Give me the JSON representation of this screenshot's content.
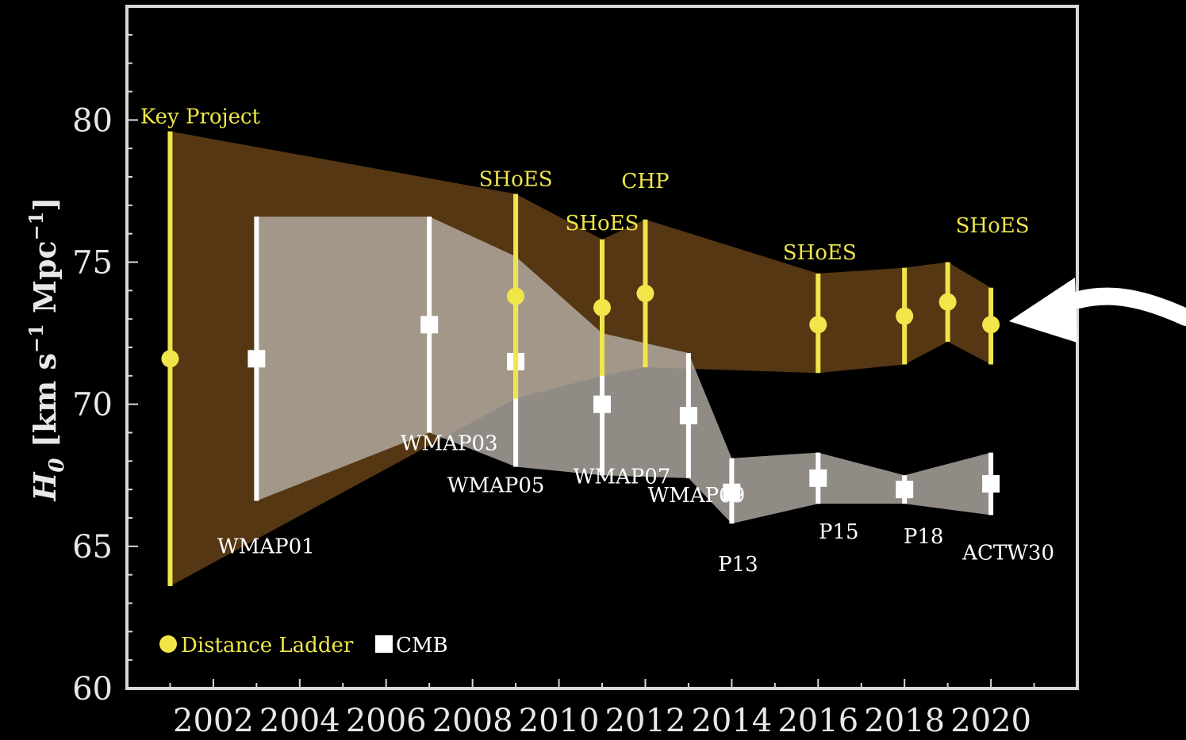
{
  "chart_data": {
    "type": "scatter",
    "title": "",
    "xlabel": "",
    "ylabel": "H0 [km s^-1 Mpc^-1]",
    "xlim": [
      2000,
      2022
    ],
    "ylim": [
      60,
      84
    ],
    "xticks": [
      2002,
      2004,
      2006,
      2008,
      2010,
      2012,
      2014,
      2016,
      2018,
      2020
    ],
    "yticks": [
      60,
      65,
      70,
      75,
      80
    ],
    "legend": {
      "placement": "bottom-left"
    },
    "series": [
      {
        "name": "Distance Ladder",
        "color": "#f0e64a",
        "band_color": "#5a3a14",
        "points": [
          {
            "x": 2001,
            "y": 71.6,
            "lo": 63.6,
            "hi": 79.6,
            "label": "Key Project"
          },
          {
            "x": 2009,
            "y": 73.8,
            "lo": 70.2,
            "hi": 77.4,
            "label": "SHoES"
          },
          {
            "x": 2011,
            "y": 73.4,
            "lo": 71.0,
            "hi": 75.8,
            "label": "SHoES"
          },
          {
            "x": 2012,
            "y": 73.9,
            "lo": 71.3,
            "hi": 76.5,
            "label": "CHP"
          },
          {
            "x": 2016,
            "y": 72.8,
            "lo": 71.1,
            "hi": 74.6,
            "label": "SHoES"
          },
          {
            "x": 2018,
            "y": 73.1,
            "lo": 71.4,
            "hi": 74.8,
            "label": ""
          },
          {
            "x": 2019,
            "y": 73.6,
            "lo": 72.2,
            "hi": 75.0,
            "label": ""
          },
          {
            "x": 2020,
            "y": 72.8,
            "lo": 71.4,
            "hi": 74.1,
            "label": "SHoES"
          }
        ]
      },
      {
        "name": "CMB",
        "color": "#ffffff",
        "band_color": "#b8b2aa",
        "points": [
          {
            "x": 2003,
            "y": 71.6,
            "lo": 66.6,
            "hi": 76.6,
            "label": "WMAP01"
          },
          {
            "x": 2007,
            "y": 72.8,
            "lo": 69.0,
            "hi": 76.6,
            "label": "WMAP03"
          },
          {
            "x": 2009,
            "y": 71.5,
            "lo": 67.8,
            "hi": 75.2,
            "label": "WMAP05"
          },
          {
            "x": 2011,
            "y": 70.0,
            "lo": 67.5,
            "hi": 72.5,
            "label": "WMAP07"
          },
          {
            "x": 2013,
            "y": 69.6,
            "lo": 67.4,
            "hi": 71.8,
            "label": "WMAP09"
          },
          {
            "x": 2014,
            "y": 66.9,
            "lo": 65.8,
            "hi": 68.1,
            "label": "P13"
          },
          {
            "x": 2016,
            "y": 67.4,
            "lo": 66.5,
            "hi": 68.3,
            "label": "P15"
          },
          {
            "x": 2018,
            "y": 67.0,
            "lo": 66.5,
            "hi": 67.5,
            "label": "P18"
          },
          {
            "x": 2020,
            "y": 67.2,
            "lo": 66.1,
            "hi": 68.3,
            "label": "ACTW30"
          }
        ]
      }
    ]
  }
}
